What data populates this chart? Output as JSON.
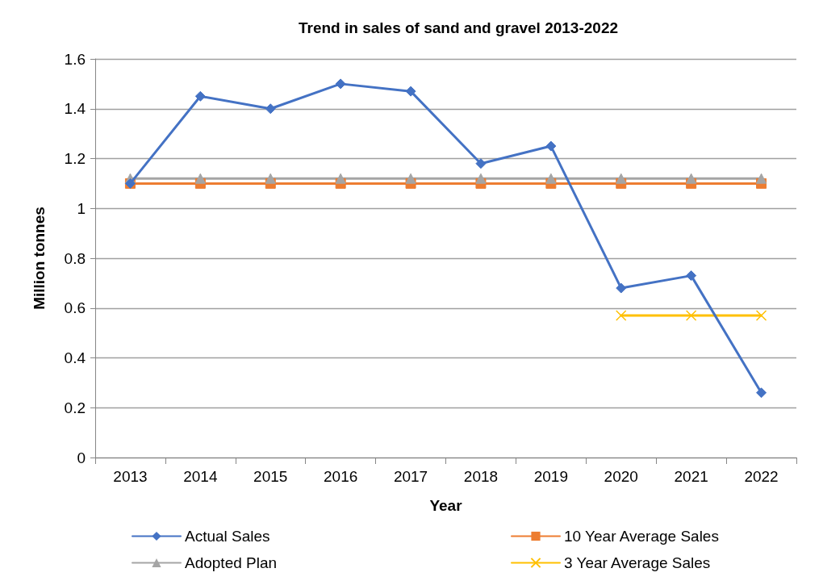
{
  "chart_data": {
    "type": "line",
    "title": "Trend in sales of sand and gravel 2013-2022",
    "xlabel": "Year",
    "ylabel": "Million tonnes",
    "categories": [
      "2013",
      "2014",
      "2015",
      "2016",
      "2017",
      "2018",
      "2019",
      "2020",
      "2021",
      "2022"
    ],
    "series": [
      {
        "name": "Actual Sales",
        "color": "#4472c4",
        "marker": "diamond",
        "values": [
          1.1,
          1.45,
          1.4,
          1.5,
          1.47,
          1.18,
          1.25,
          0.68,
          0.73,
          0.26
        ]
      },
      {
        "name": "10 Year Average Sales",
        "color": "#ed7d31",
        "marker": "square",
        "values": [
          1.1,
          1.1,
          1.1,
          1.1,
          1.1,
          1.1,
          1.1,
          1.1,
          1.1,
          1.1
        ]
      },
      {
        "name": "Adopted Plan",
        "color": "#a5a5a5",
        "marker": "triangle",
        "values": [
          1.12,
          1.12,
          1.12,
          1.12,
          1.12,
          1.12,
          1.12,
          1.12,
          1.12,
          1.12
        ]
      },
      {
        "name": "3 Year Average Sales",
        "color": "#ffc000",
        "marker": "cross",
        "values": [
          null,
          null,
          null,
          null,
          null,
          null,
          null,
          0.57,
          0.57,
          0.57
        ]
      }
    ],
    "ylim": [
      0,
      1.6
    ],
    "yticks": [
      0,
      0.2,
      0.4,
      0.6,
      0.8,
      1,
      1.2,
      1.4,
      1.6
    ],
    "grid": "y",
    "legend": "bottom"
  }
}
